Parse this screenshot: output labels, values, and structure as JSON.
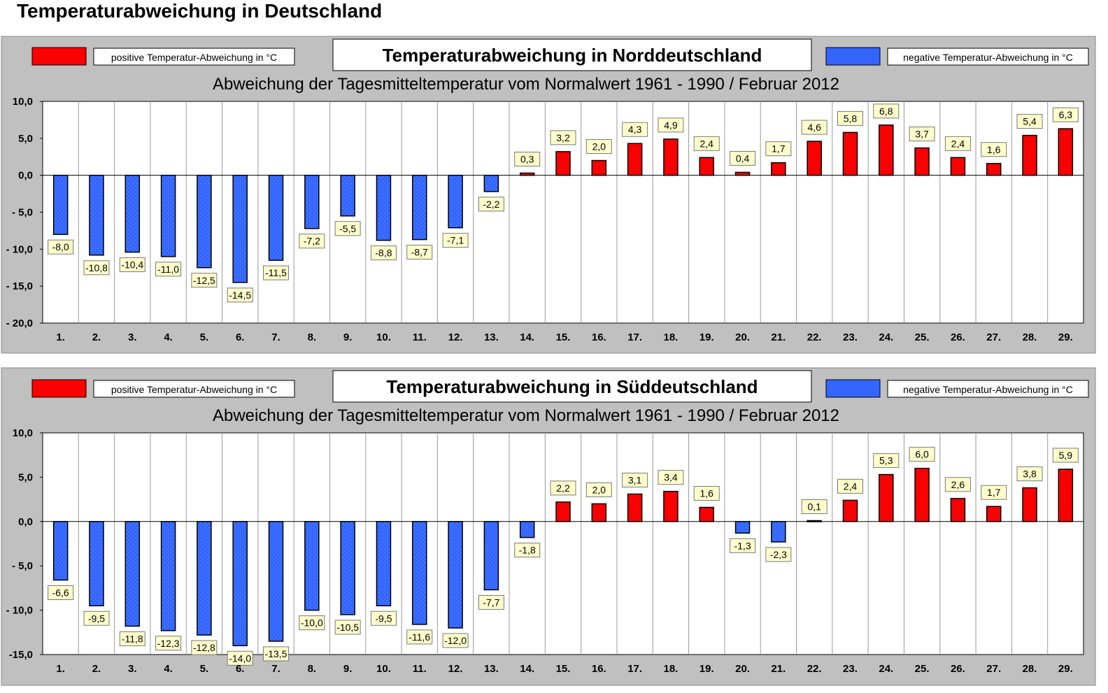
{
  "page": {
    "title": "Temperaturabweichung in Deutschland"
  },
  "colors": {
    "positive": "#ff0000",
    "negative": "#3366ff",
    "panel_bg": "#c0c0c0",
    "label_bg": "#ffffcc"
  },
  "chart_data": [
    {
      "type": "bar",
      "title": "Temperaturabweichung in Norddeutschland",
      "subtitle": "Abweichung der Tagesmitteltemperatur vom Normalwert 1961 - 1990  /  Februar 2012",
      "legend_positive": "positive Temperatur-Abweichung in °C",
      "legend_negative": "negative Temperatur-Abweichung in °C",
      "legend": "top",
      "ylim": [
        -20,
        10
      ],
      "yticks": [
        10,
        5,
        0,
        -5,
        -10,
        -15,
        -20
      ],
      "ytick_labels": [
        "10,0",
        "5,0",
        "0,0",
        "- 5,0",
        "- 10,0",
        "- 15,0",
        "- 20,0"
      ],
      "categories": [
        "1.",
        "2.",
        "3.",
        "4.",
        "5.",
        "6.",
        "7.",
        "8.",
        "9.",
        "10.",
        "11.",
        "12.",
        "13.",
        "14.",
        "15.",
        "16.",
        "17.",
        "18.",
        "19.",
        "20.",
        "21.",
        "22.",
        "23.",
        "24.",
        "25.",
        "26.",
        "27.",
        "28.",
        "29."
      ],
      "values": [
        -8.0,
        -10.8,
        -10.4,
        -11.0,
        -12.5,
        -14.5,
        -11.5,
        -7.2,
        -5.5,
        -8.8,
        -8.7,
        -7.1,
        -2.2,
        0.3,
        3.2,
        2.0,
        4.3,
        4.9,
        2.4,
        0.4,
        1.7,
        4.6,
        5.8,
        6.8,
        3.7,
        2.4,
        1.6,
        5.4,
        6.3
      ],
      "value_labels": [
        "-8,0",
        "-10,8",
        "-10,4",
        "-11,0",
        "-12,5",
        "-14,5",
        "-11,5",
        "-7,2",
        "-5,5",
        "-8,8",
        "-8,7",
        "-7,1",
        "-2,2",
        "0,3",
        "3,2",
        "2,0",
        "4,3",
        "4,9",
        "2,4",
        "0,4",
        "1,7",
        "4,6",
        "5,8",
        "6,8",
        "3,7",
        "2,4",
        "1,6",
        "5,4",
        "6,3"
      ],
      "grid": true
    },
    {
      "type": "bar",
      "title": "Temperaturabweichung in Süddeutschland",
      "subtitle": "Abweichung der Tagesmitteltemperatur vom Normalwert 1961 - 1990  /  Februar 2012",
      "legend_positive": "positive Temperatur-Abweichung in °C",
      "legend_negative": "negative Temperatur-Abweichung in °C",
      "legend": "top",
      "ylim": [
        -15,
        10
      ],
      "yticks": [
        10,
        5,
        0,
        -5,
        -10,
        -15
      ],
      "ytick_labels": [
        "10,0",
        "5,0",
        "0,0",
        "- 5,0",
        "- 10,0",
        "-15,0"
      ],
      "categories": [
        "1.",
        "2.",
        "3.",
        "4.",
        "5.",
        "6.",
        "7.",
        "8.",
        "9.",
        "10.",
        "11.",
        "12.",
        "13.",
        "14.",
        "15.",
        "16.",
        "17.",
        "18.",
        "19.",
        "20.",
        "21.",
        "22.",
        "23.",
        "24.",
        "25.",
        "26.",
        "27.",
        "28.",
        "29."
      ],
      "values": [
        -6.6,
        -9.5,
        -11.8,
        -12.3,
        -12.8,
        -14.0,
        -13.5,
        -10.0,
        -10.5,
        -9.5,
        -11.6,
        -12.0,
        -7.7,
        -1.8,
        2.2,
        2.0,
        3.1,
        3.4,
        1.6,
        -1.3,
        -2.3,
        0.1,
        2.4,
        5.3,
        6.0,
        2.6,
        1.7,
        3.8,
        5.9
      ],
      "value_labels": [
        "-6,6",
        "-9,5",
        "-11,8",
        "-12,3",
        "-12,8",
        "-14,0",
        "-13,5",
        "-10,0",
        "-10,5",
        "-9,5",
        "-11,6",
        "-12,0",
        "-7,7",
        "-1,8",
        "2,2",
        "2,0",
        "3,1",
        "3,4",
        "1,6",
        "-1,3",
        "-2,3",
        "0,1",
        "2,4",
        "5,3",
        "6,0",
        "2,6",
        "1,7",
        "3,8",
        "5,9"
      ],
      "grid": true
    }
  ]
}
